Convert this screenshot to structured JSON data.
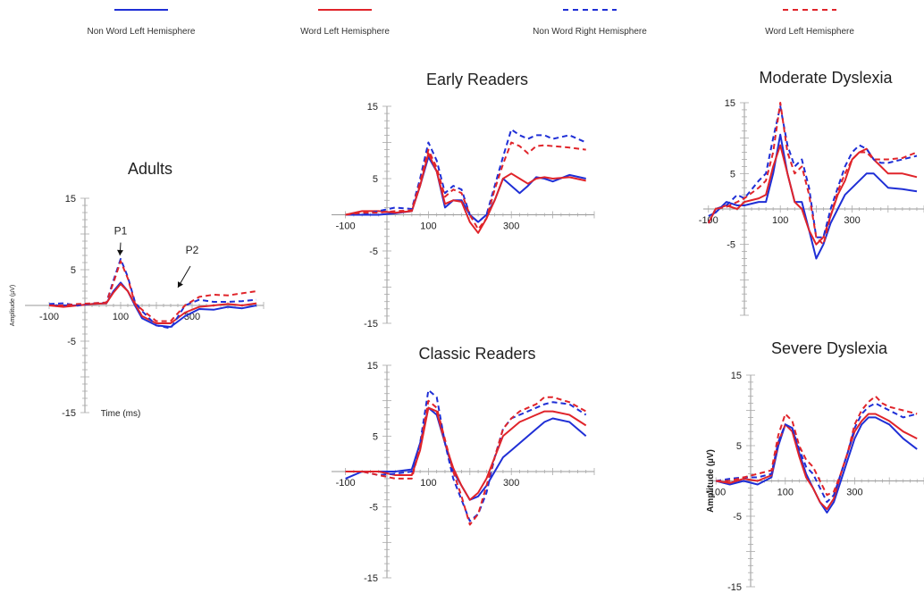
{
  "legend": [
    {
      "label": "Non Word Left Hemisphere",
      "color": "#1f2fd6",
      "dash": "solid"
    },
    {
      "label": "Word Left Hemisphere",
      "color": "#e0242a",
      "dash": "solid"
    },
    {
      "label": "Non Word Right Hemisphere",
      "color": "#1f2fd6",
      "dash": "dashed"
    },
    {
      "label": "Word Left Hemisphere",
      "color": "#e0242a",
      "dash": "dashed"
    }
  ],
  "chart_data": [
    {
      "type": "line",
      "title": "Adults",
      "xlabel": "Time (ms)",
      "ylabel": "Amplitude (µV)",
      "xlim": [
        -100,
        500
      ],
      "ylim": [
        -15,
        15
      ],
      "x_ticks": [
        "-100",
        "100",
        "300"
      ],
      "y_ticks": [
        "15",
        "5",
        "-5",
        "-15"
      ],
      "annotations": [
        "P1",
        "P2"
      ],
      "series": [
        {
          "x": [
            -100,
            -60,
            -20,
            20,
            60,
            80,
            100,
            120,
            140,
            160,
            200,
            240,
            280,
            320,
            360,
            400,
            440,
            480
          ],
          "y": [
            0,
            0,
            0,
            0.2,
            0.3,
            2,
            3.2,
            2,
            0,
            -1.8,
            -2.8,
            -3,
            -1.5,
            -0.5,
            -0.6,
            -0.2,
            -0.4,
            0
          ]
        },
        {
          "x": [
            -100,
            -60,
            -20,
            20,
            60,
            80,
            100,
            120,
            140,
            160,
            200,
            240,
            280,
            320,
            360,
            400,
            440,
            480
          ],
          "y": [
            0,
            -0.2,
            0,
            0.2,
            0.3,
            1.8,
            3,
            2,
            0.2,
            -1.5,
            -2.5,
            -2.5,
            -1,
            -0.2,
            0,
            0.2,
            0,
            0.3
          ]
        },
        {
          "x": [
            -100,
            -60,
            -20,
            20,
            60,
            80,
            100,
            120,
            140,
            160,
            200,
            240,
            280,
            320,
            360,
            400,
            440,
            480
          ],
          "y": [
            0.2,
            0.3,
            0,
            0.3,
            0.4,
            3.5,
            6.5,
            4,
            0.5,
            -0.8,
            -2.8,
            -3.2,
            0,
            0.8,
            0.5,
            0.5,
            0.6,
            0.8
          ]
        },
        {
          "x": [
            -100,
            -60,
            -20,
            20,
            60,
            80,
            100,
            120,
            140,
            160,
            200,
            240,
            280,
            320,
            360,
            400,
            440,
            480
          ],
          "y": [
            0,
            0,
            0.2,
            0.3,
            0.4,
            3.2,
            6.2,
            3.8,
            0.3,
            -0.6,
            -2.2,
            -2.2,
            0,
            1.2,
            1.5,
            1.4,
            1.7,
            2
          ]
        }
      ]
    },
    {
      "type": "line",
      "title": "Early Readers",
      "xlim": [
        -100,
        500
      ],
      "ylim": [
        -15,
        15
      ],
      "x_ticks": [
        "-100",
        "100",
        "300"
      ],
      "y_ticks": [
        "15",
        "5",
        "-5",
        "-15"
      ],
      "series": [
        {
          "x": [
            -100,
            -60,
            -20,
            20,
            60,
            80,
            100,
            120,
            140,
            160,
            180,
            200,
            220,
            240,
            260,
            280,
            300,
            320,
            340,
            360,
            380,
            400,
            440,
            480
          ],
          "y": [
            0,
            0,
            0,
            0.2,
            0.5,
            4,
            8,
            6,
            1,
            2,
            2,
            0,
            -1,
            0,
            2,
            5,
            4,
            3,
            4,
            5.2,
            5,
            4.6,
            5.5,
            5
          ]
        },
        {
          "x": [
            -100,
            -60,
            -20,
            20,
            60,
            80,
            100,
            120,
            140,
            160,
            180,
            200,
            220,
            240,
            260,
            280,
            300,
            320,
            340,
            360,
            380,
            400,
            440,
            480
          ],
          "y": [
            0,
            0.5,
            0.5,
            0.3,
            0.5,
            4,
            8.5,
            6,
            1.5,
            2,
            1.8,
            -1,
            -2.5,
            -0.5,
            2,
            5,
            5.7,
            5,
            4.3,
            5,
            5.2,
            5,
            5.2,
            4.7
          ]
        },
        {
          "x": [
            -100,
            -60,
            -20,
            20,
            60,
            80,
            100,
            120,
            140,
            160,
            180,
            200,
            220,
            240,
            260,
            280,
            300,
            320,
            340,
            360,
            380,
            400,
            440,
            480
          ],
          "y": [
            0,
            0,
            0.5,
            1,
            0.8,
            5,
            10,
            7.5,
            3,
            4,
            3.5,
            0,
            -1,
            0,
            4,
            8,
            11.8,
            11,
            10.5,
            11,
            11,
            10.5,
            11,
            10
          ]
        },
        {
          "x": [
            -100,
            -60,
            -20,
            20,
            60,
            80,
            100,
            120,
            140,
            160,
            180,
            200,
            220,
            240,
            260,
            280,
            300,
            320,
            340,
            360,
            380,
            400,
            440,
            480
          ],
          "y": [
            0,
            0.3,
            0.3,
            0.5,
            0.6,
            4.5,
            9,
            6.5,
            2.5,
            3.5,
            3,
            0,
            -2,
            -0.5,
            3.5,
            7,
            10,
            9.5,
            8.5,
            9.5,
            9.6,
            9.5,
            9.3,
            9
          ]
        }
      ]
    },
    {
      "type": "line",
      "title": "Classic Readers",
      "xlim": [
        -100,
        500
      ],
      "ylim": [
        -15,
        15
      ],
      "x_ticks": [
        "-100",
        "100",
        "300"
      ],
      "y_ticks": [
        "15",
        "5",
        "-5",
        "-15"
      ],
      "series": [
        {
          "x": [
            -100,
            -60,
            -20,
            20,
            60,
            80,
            100,
            120,
            140,
            160,
            180,
            200,
            220,
            240,
            260,
            280,
            300,
            320,
            340,
            360,
            380,
            400,
            440,
            480
          ],
          "y": [
            -1,
            0,
            0,
            0,
            0.3,
            4,
            9,
            8,
            4,
            0,
            -2,
            -4,
            -3.5,
            -2,
            0,
            2,
            3,
            4,
            5,
            6,
            7,
            7.5,
            7,
            5
          ]
        },
        {
          "x": [
            -100,
            -60,
            -20,
            20,
            60,
            80,
            100,
            120,
            140,
            160,
            180,
            200,
            220,
            240,
            260,
            280,
            300,
            320,
            340,
            360,
            380,
            400,
            440,
            480
          ],
          "y": [
            0,
            0,
            0,
            -0.5,
            -0.5,
            3,
            9,
            8.5,
            4,
            0.5,
            -2,
            -4,
            -3,
            -1,
            2,
            5,
            6,
            7,
            7.5,
            8,
            8.5,
            8.5,
            8,
            6.5
          ]
        },
        {
          "x": [
            -100,
            -60,
            -20,
            20,
            60,
            80,
            100,
            120,
            140,
            160,
            180,
            200,
            220,
            240,
            260,
            280,
            300,
            320,
            340,
            360,
            380,
            400,
            440,
            480
          ],
          "y": [
            0,
            0,
            -0.5,
            -0.3,
            0,
            4,
            11.5,
            10.5,
            4,
            -1,
            -4,
            -7,
            -6,
            -3,
            2,
            6,
            7.5,
            8,
            8.5,
            9,
            9.5,
            9.8,
            9.5,
            8
          ]
        },
        {
          "x": [
            -100,
            -60,
            -20,
            20,
            60,
            80,
            100,
            120,
            140,
            160,
            180,
            200,
            220,
            240,
            260,
            280,
            300,
            320,
            340,
            360,
            380,
            400,
            440,
            480
          ],
          "y": [
            0,
            0,
            -0.5,
            -1,
            -1,
            3.5,
            10,
            9,
            4.5,
            0,
            -3.5,
            -7.5,
            -6,
            -2,
            2,
            6,
            7.5,
            8.5,
            9,
            9.5,
            10.5,
            10.5,
            9.8,
            8.5
          ]
        }
      ]
    },
    {
      "type": "line",
      "title": "Moderate Dyslexia",
      "xlim": [
        -100,
        500
      ],
      "ylim": [
        -15,
        15
      ],
      "x_ticks": [
        "-100",
        "100",
        "300"
      ],
      "y_ticks": [
        "15",
        "5",
        "-5"
      ],
      "series": [
        {
          "x": [
            -100,
            -80,
            -50,
            -20,
            0,
            40,
            60,
            80,
            100,
            120,
            140,
            160,
            180,
            200,
            220,
            240,
            260,
            280,
            300,
            320,
            340,
            360,
            380,
            400,
            440,
            480
          ],
          "y": [
            -1,
            -0.5,
            1,
            0.5,
            0.5,
            1,
            1,
            5,
            10.5,
            5,
            1,
            1,
            -3,
            -7,
            -5,
            -2,
            0,
            2,
            3,
            4,
            5,
            5,
            4,
            3,
            2.8,
            2.5
          ]
        },
        {
          "x": [
            -100,
            -80,
            -50,
            -20,
            0,
            40,
            60,
            80,
            100,
            120,
            140,
            160,
            180,
            200,
            220,
            240,
            260,
            280,
            300,
            320,
            340,
            360,
            380,
            400,
            440,
            480
          ],
          "y": [
            -2,
            0,
            0.5,
            0,
            1,
            1.5,
            2,
            6,
            9,
            5,
            1,
            0,
            -3,
            -5,
            -4,
            -1,
            2,
            4,
            7,
            8,
            8.5,
            7,
            6,
            5,
            5,
            4.5
          ]
        },
        {
          "x": [
            -100,
            -80,
            -50,
            -20,
            0,
            40,
            60,
            80,
            100,
            120,
            140,
            160,
            180,
            200,
            220,
            240,
            260,
            280,
            300,
            320,
            340,
            360,
            380,
            400,
            440,
            480
          ],
          "y": [
            -2,
            0,
            0.5,
            2,
            1.5,
            4,
            5,
            10,
            14.5,
            9,
            6,
            7,
            3,
            -4,
            -4,
            0,
            3,
            6,
            8,
            9,
            8.5,
            7,
            6.5,
            6.5,
            7,
            7.5
          ]
        },
        {
          "x": [
            -100,
            -80,
            -50,
            -20,
            0,
            40,
            60,
            80,
            100,
            120,
            140,
            160,
            180,
            200,
            220,
            240,
            260,
            280,
            300,
            320,
            340,
            360,
            380,
            400,
            440,
            480
          ],
          "y": [
            -2,
            0,
            0.3,
            1,
            1.5,
            3,
            4,
            8,
            15,
            8,
            5,
            6,
            2,
            -4,
            -5,
            -1,
            2.5,
            5,
            7,
            8,
            8,
            7,
            7,
            7,
            7.2,
            8
          ]
        }
      ]
    },
    {
      "type": "line",
      "title": "Severe Dyslexia",
      "ylabel": "Amplitude (µV)",
      "xlim": [
        -100,
        500
      ],
      "ylim": [
        -15,
        15
      ],
      "x_ticks": [
        "-100",
        "100",
        "300"
      ],
      "y_ticks": [
        "15",
        "5",
        "-5",
        "-15"
      ],
      "series": [
        {
          "x": [
            -100,
            -60,
            -20,
            20,
            60,
            80,
            100,
            120,
            140,
            160,
            180,
            200,
            220,
            240,
            260,
            280,
            300,
            320,
            340,
            360,
            380,
            400,
            440,
            480
          ],
          "y": [
            0,
            -0.5,
            0,
            -0.5,
            0.5,
            5,
            8,
            7.5,
            4,
            1,
            -1,
            -3,
            -4.5,
            -3,
            0,
            3,
            6,
            8,
            9,
            9,
            8.5,
            8,
            6,
            4.5
          ]
        },
        {
          "x": [
            -100,
            -60,
            -20,
            20,
            60,
            80,
            100,
            120,
            140,
            160,
            180,
            200,
            220,
            240,
            260,
            280,
            300,
            320,
            340,
            360,
            380,
            400,
            440,
            480
          ],
          "y": [
            0,
            -0.3,
            0.3,
            0,
            0.8,
            5.5,
            8,
            7,
            3.5,
            0.5,
            -1,
            -3,
            -4,
            -2.5,
            1,
            4,
            7,
            8.5,
            9.5,
            9.5,
            9,
            8.5,
            7,
            6
          ]
        },
        {
          "x": [
            -100,
            -60,
            -20,
            20,
            60,
            80,
            100,
            120,
            140,
            160,
            180,
            200,
            220,
            240,
            260,
            280,
            300,
            320,
            340,
            360,
            380,
            400,
            440,
            480
          ],
          "y": [
            0,
            0.3,
            0.5,
            0.5,
            1,
            5.5,
            8,
            7.5,
            4.5,
            2,
            1,
            -1,
            -3,
            -2,
            1,
            4,
            7.5,
            9.5,
            10.5,
            11,
            10.5,
            10,
            9,
            9.5
          ]
        },
        {
          "x": [
            -100,
            -60,
            -20,
            20,
            60,
            80,
            100,
            120,
            140,
            160,
            180,
            200,
            220,
            240,
            260,
            280,
            300,
            320,
            340,
            360,
            380,
            400,
            440,
            480
          ],
          "y": [
            0,
            0,
            0.5,
            1,
            1.5,
            6.5,
            9.5,
            8.5,
            5,
            3,
            2,
            0,
            -2,
            -1.5,
            1,
            4,
            8,
            10,
            11.2,
            12,
            11,
            10.5,
            10,
            9.5
          ]
        }
      ]
    }
  ]
}
